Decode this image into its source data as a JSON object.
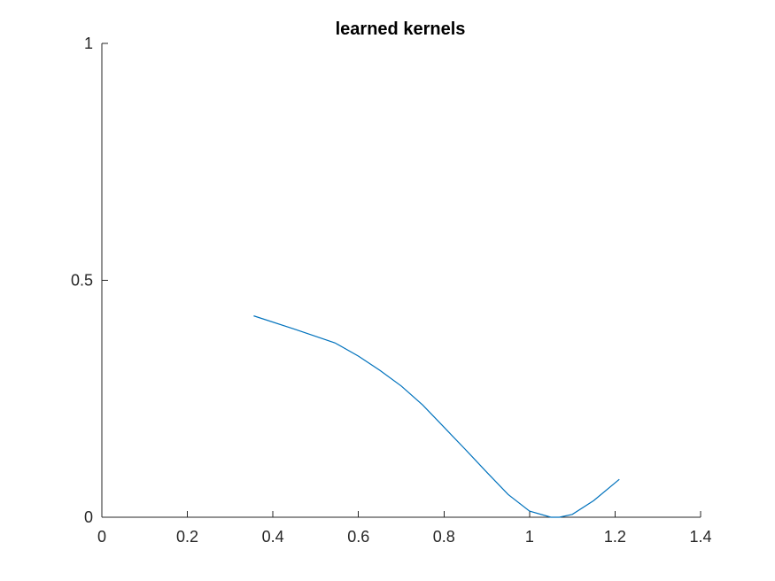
{
  "chart_data": {
    "type": "line",
    "title": "learned kernels",
    "xlabel": "",
    "ylabel": "",
    "xlim": [
      0,
      1.4
    ],
    "ylim": [
      0,
      1
    ],
    "xticks": [
      0,
      0.2,
      0.4,
      0.6,
      0.8,
      1,
      1.2,
      1.4
    ],
    "xtick_labels": [
      "0",
      "0.2",
      "0.4",
      "0.6",
      "0.8",
      "1",
      "1.2",
      "1.4"
    ],
    "yticks": [
      0,
      0.5,
      1
    ],
    "ytick_labels": [
      "0",
      "0.5",
      "1"
    ],
    "grid": false,
    "box": false,
    "series": [
      {
        "color": "#0072BD",
        "x": [
          0.355,
          0.45,
          0.545,
          0.6,
          0.65,
          0.7,
          0.75,
          0.8,
          0.85,
          0.9,
          0.95,
          1.0,
          1.05,
          1.07,
          1.1,
          1.15,
          1.21
        ],
        "y": [
          0.425,
          0.397,
          0.368,
          0.34,
          0.31,
          0.277,
          0.237,
          0.19,
          0.143,
          0.095,
          0.048,
          0.013,
          0.0,
          0.0,
          0.006,
          0.035,
          0.08
        ]
      }
    ]
  }
}
